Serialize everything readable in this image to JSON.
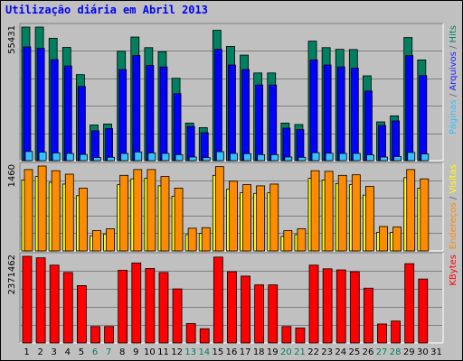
{
  "title": "Utilização diária em Abril 2013",
  "right_legend_top": [
    {
      "text": "Páginas",
      "color": "#35c0ff"
    },
    {
      "text": " / ",
      "color": "#666666"
    },
    {
      "text": "Arquivos",
      "color": "#2020ff"
    },
    {
      "text": " / ",
      "color": "#666666"
    },
    {
      "text": "Hits",
      "color": "#008060"
    }
  ],
  "right_legend_mid": [
    {
      "text": "Endereços",
      "color": "#ff8c00"
    },
    {
      "text": " / ",
      "color": "#666666"
    },
    {
      "text": "Visitas",
      "color": "#ffff00"
    }
  ],
  "right_legend_bot": [
    {
      "text": "KBytes",
      "color": "#ff0000"
    }
  ],
  "weekend_color": "#008060",
  "colors": {
    "hits": "#008060",
    "files": "#0000ff",
    "pages": "#35c0ff",
    "visits": "#ffff00",
    "sites": "#ff8c00",
    "kbytes": "#ff0000"
  },
  "chart_data": [
    {
      "type": "bar",
      "panel": "top",
      "y_label": "55431",
      "ylim": [
        0,
        55431
      ],
      "categories": [
        "1",
        "2",
        "3",
        "4",
        "5",
        "6",
        "7",
        "8",
        "9",
        "10",
        "11",
        "12",
        "13",
        "14",
        "15",
        "16",
        "17",
        "18",
        "19",
        "20",
        "21",
        "22",
        "23",
        "24",
        "25",
        "26",
        "27",
        "28",
        "29",
        "30",
        "31"
      ],
      "weekend_days": [
        "6",
        "7",
        "13",
        "14",
        "20",
        "21",
        "27",
        "28"
      ],
      "series": [
        {
          "name": "Hits",
          "values": [
            55431,
            55431,
            50800,
            47000,
            35700,
            14800,
            15200,
            45400,
            51300,
            46900,
            45200,
            34200,
            15600,
            13700,
            54100,
            47400,
            43800,
            36400,
            36400,
            15600,
            15000,
            49600,
            46900,
            46200,
            46100,
            35200,
            16100,
            18600,
            51100,
            41800,
            0
          ]
        },
        {
          "name": "Arquivos",
          "values": [
            47200,
            46600,
            41900,
            39300,
            30800,
            12400,
            13300,
            37800,
            43600,
            39500,
            38900,
            27800,
            14200,
            11600,
            46200,
            39700,
            37800,
            31400,
            31400,
            13500,
            12900,
            41800,
            39700,
            38900,
            38400,
            28900,
            14600,
            16500,
            43600,
            35300,
            0
          ]
        },
        {
          "name": "Páginas",
          "values": [
            3800,
            3500,
            3200,
            3000,
            2600,
            1300,
            1400,
            3000,
            3600,
            3200,
            3000,
            2500,
            1500,
            1300,
            3700,
            3000,
            2900,
            2500,
            2500,
            1500,
            1400,
            3300,
            3100,
            3000,
            3000,
            2400,
            1500,
            1700,
            3400,
            2800,
            0
          ]
        }
      ]
    },
    {
      "type": "bar",
      "panel": "middle",
      "y_label": "1460",
      "ylim": [
        0,
        1460
      ],
      "series": [
        {
          "name": "Endereços",
          "values": [
            1400,
            1460,
            1380,
            1320,
            1080,
            350,
            380,
            1300,
            1400,
            1400,
            1280,
            1080,
            390,
            400,
            1450,
            1200,
            1140,
            1120,
            1150,
            350,
            380,
            1380,
            1370,
            1300,
            1310,
            1110,
            420,
            410,
            1400,
            1240,
            0
          ]
        },
        {
          "name": "Visitas",
          "values": [
            1220,
            1280,
            1180,
            1150,
            950,
            260,
            290,
            1140,
            1240,
            1250,
            1120,
            940,
            280,
            300,
            1300,
            1060,
            1000,
            990,
            1000,
            250,
            280,
            1250,
            1220,
            1160,
            1140,
            960,
            320,
            320,
            1260,
            1080,
            0
          ]
        }
      ]
    },
    {
      "type": "bar",
      "panel": "bottom",
      "y_label": "2371462",
      "ylim": [
        0,
        2371462
      ],
      "series": [
        {
          "name": "KBytes",
          "values": [
            2371462,
            2330000,
            2130000,
            1930000,
            1570000,
            450000,
            450000,
            1990000,
            2190000,
            2040000,
            1930000,
            1480000,
            530000,
            390000,
            2350000,
            1950000,
            1830000,
            1590000,
            1590000,
            450000,
            410000,
            2130000,
            2030000,
            2000000,
            1950000,
            1500000,
            520000,
            600000,
            2170000,
            1750000,
            0
          ]
        }
      ]
    }
  ]
}
